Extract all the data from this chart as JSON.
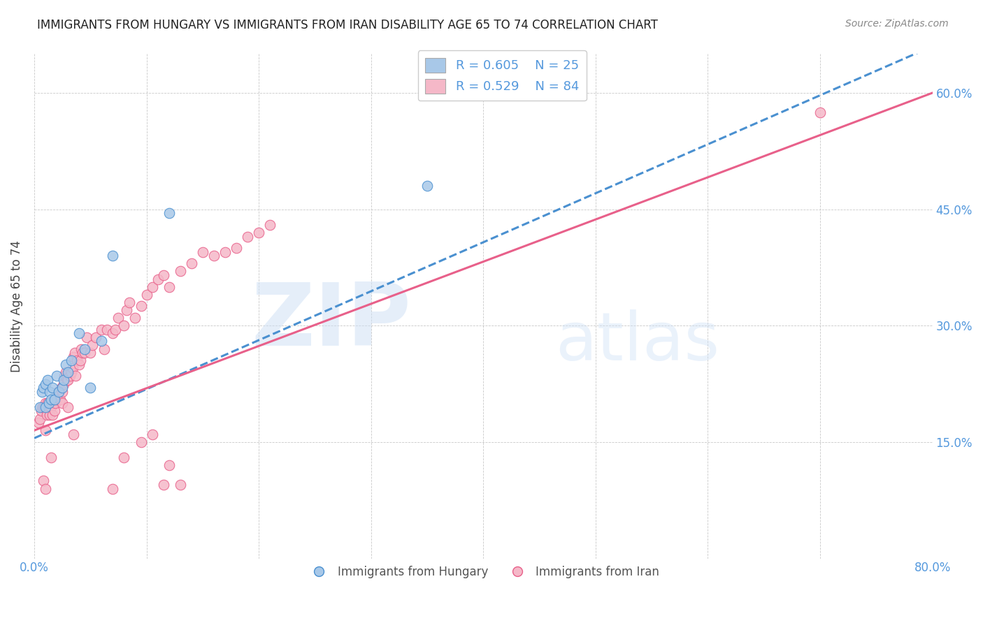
{
  "title": "IMMIGRANTS FROM HUNGARY VS IMMIGRANTS FROM IRAN DISABILITY AGE 65 TO 74 CORRELATION CHART",
  "source": "Source: ZipAtlas.com",
  "ylabel": "Disability Age 65 to 74",
  "xlabel": "",
  "watermark_zip": "ZIP",
  "watermark_atlas": "atlas",
  "legend_r1": "R = 0.605",
  "legend_n1": "N = 25",
  "legend_r2": "R = 0.529",
  "legend_n2": "N = 84",
  "color_hungary": "#a8c8e8",
  "color_iran": "#f5b8c8",
  "line_color_hungary": "#4a90d0",
  "line_color_iran": "#e8608a",
  "xmin": 0.0,
  "xmax": 0.8,
  "ymin": 0.0,
  "ymax": 0.65,
  "hungary_line_x": [
    0.0,
    0.8
  ],
  "hungary_line_y": [
    0.155,
    0.66
  ],
  "iran_line_x": [
    0.0,
    0.8
  ],
  "iran_line_y": [
    0.165,
    0.6
  ],
  "hungary_x": [
    0.005,
    0.007,
    0.008,
    0.01,
    0.01,
    0.012,
    0.013,
    0.014,
    0.015,
    0.016,
    0.018,
    0.02,
    0.022,
    0.025,
    0.026,
    0.028,
    0.03,
    0.033,
    0.04,
    0.045,
    0.05,
    0.06,
    0.07,
    0.12,
    0.35
  ],
  "hungary_y": [
    0.195,
    0.215,
    0.22,
    0.195,
    0.225,
    0.23,
    0.2,
    0.215,
    0.205,
    0.22,
    0.205,
    0.235,
    0.215,
    0.22,
    0.23,
    0.25,
    0.24,
    0.255,
    0.29,
    0.27,
    0.22,
    0.28,
    0.39,
    0.445,
    0.48
  ],
  "iran_x": [
    0.004,
    0.005,
    0.006,
    0.007,
    0.008,
    0.009,
    0.01,
    0.01,
    0.011,
    0.012,
    0.013,
    0.014,
    0.015,
    0.016,
    0.017,
    0.018,
    0.019,
    0.02,
    0.021,
    0.022,
    0.023,
    0.024,
    0.025,
    0.026,
    0.027,
    0.028,
    0.029,
    0.03,
    0.031,
    0.032,
    0.033,
    0.034,
    0.035,
    0.036,
    0.037,
    0.038,
    0.04,
    0.041,
    0.042,
    0.043,
    0.045,
    0.047,
    0.05,
    0.052,
    0.055,
    0.06,
    0.062,
    0.065,
    0.07,
    0.072,
    0.075,
    0.08,
    0.082,
    0.085,
    0.09,
    0.095,
    0.1,
    0.105,
    0.11,
    0.115,
    0.12,
    0.13,
    0.14,
    0.15,
    0.16,
    0.17,
    0.18,
    0.19,
    0.2,
    0.21,
    0.095,
    0.105,
    0.115,
    0.12,
    0.008,
    0.01,
    0.015,
    0.025,
    0.03,
    0.035,
    0.07,
    0.08,
    0.13,
    0.7
  ],
  "iran_y": [
    0.175,
    0.18,
    0.19,
    0.195,
    0.195,
    0.195,
    0.2,
    0.165,
    0.185,
    0.2,
    0.195,
    0.185,
    0.195,
    0.185,
    0.2,
    0.19,
    0.2,
    0.205,
    0.215,
    0.215,
    0.205,
    0.22,
    0.215,
    0.225,
    0.235,
    0.24,
    0.23,
    0.23,
    0.24,
    0.235,
    0.24,
    0.245,
    0.26,
    0.265,
    0.235,
    0.255,
    0.25,
    0.255,
    0.27,
    0.265,
    0.265,
    0.285,
    0.265,
    0.275,
    0.285,
    0.295,
    0.27,
    0.295,
    0.29,
    0.295,
    0.31,
    0.3,
    0.32,
    0.33,
    0.31,
    0.325,
    0.34,
    0.35,
    0.36,
    0.365,
    0.35,
    0.37,
    0.38,
    0.395,
    0.39,
    0.395,
    0.4,
    0.415,
    0.42,
    0.43,
    0.15,
    0.16,
    0.095,
    0.12,
    0.1,
    0.09,
    0.13,
    0.2,
    0.195,
    0.16,
    0.09,
    0.13,
    0.095,
    0.575
  ]
}
